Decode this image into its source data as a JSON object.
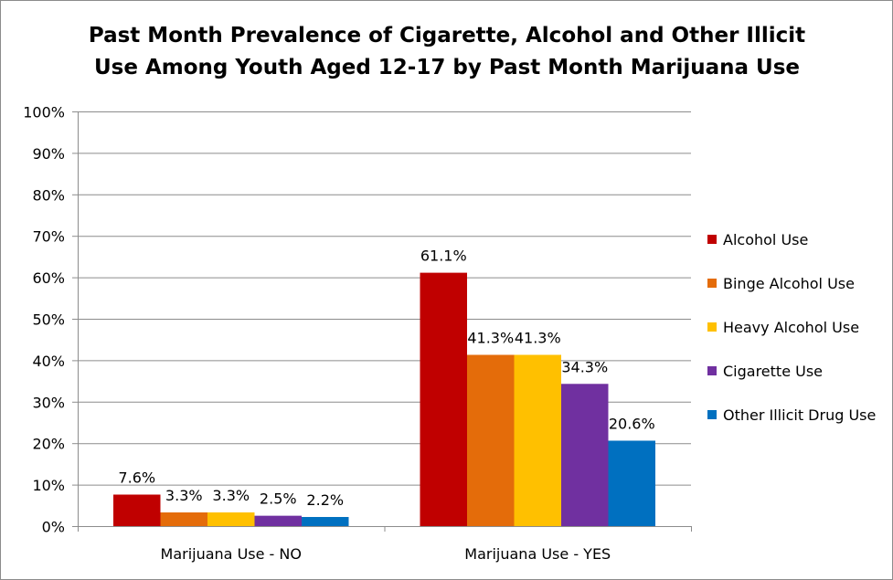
{
  "chart_data": {
    "type": "bar",
    "title_lines": [
      "Past Month Prevalence of Cigarette, Alcohol and Other Illicit",
      "Use Among Youth Aged 12-17 by Past Month Marijuana Use"
    ],
    "categories": [
      "Marijuana Use - NO",
      "Marijuana Use - YES"
    ],
    "series": [
      {
        "name": "Alcohol Use",
        "color": "#C00000",
        "values": [
          7.6,
          61.1
        ],
        "labels": [
          "7.6%",
          "61.1%"
        ]
      },
      {
        "name": "Binge Alcohol Use",
        "color": "#E46C0A",
        "values": [
          3.3,
          41.3
        ],
        "labels": [
          "3.3%",
          "41.3%"
        ]
      },
      {
        "name": "Heavy Alcohol Use",
        "color": "#FFC000",
        "values": [
          3.3,
          41.3
        ],
        "labels": [
          "3.3%",
          "41.3%"
        ]
      },
      {
        "name": "Cigarette Use",
        "color": "#7030A0",
        "values": [
          2.5,
          34.3
        ],
        "labels": [
          "2.5%",
          "34.3%"
        ]
      },
      {
        "name": "Other Illicit Drug Use",
        "color": "#0070C0",
        "values": [
          2.2,
          20.6
        ],
        "labels": [
          "2.2%",
          "20.6%"
        ]
      }
    ],
    "ylim": [
      0,
      100
    ],
    "yticks": [
      0,
      10,
      20,
      30,
      40,
      50,
      60,
      70,
      80,
      90,
      100
    ],
    "ytick_labels": [
      "0%",
      "10%",
      "20%",
      "30%",
      "40%",
      "50%",
      "60%",
      "70%",
      "80%",
      "90%",
      "100%"
    ],
    "xlabel": "",
    "ylabel": "",
    "grid": true,
    "legend_position": "right"
  }
}
